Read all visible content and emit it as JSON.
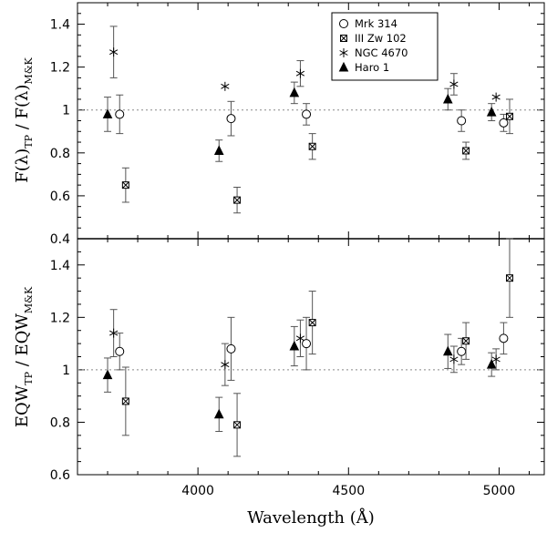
{
  "chart_data": {
    "type": "scatter",
    "x_range": [
      3600,
      5150
    ],
    "x_ticks": [
      4000,
      4500,
      5000
    ],
    "x_tick_labels": [
      "4000",
      "4500",
      "5000"
    ],
    "xlabel": "Wavelength (Å)",
    "legend": {
      "placement": "top-right (upper panel)",
      "entries": [
        {
          "name": "Mrk 314",
          "marker": "open-circle"
        },
        {
          "name": "III Zw 102",
          "marker": "open-square-star"
        },
        {
          "name": "NGC 4670",
          "marker": "asterisk"
        },
        {
          "name": "Haro 1",
          "marker": "filled-triangle"
        }
      ]
    },
    "panels": [
      {
        "id": "flux",
        "ylabel_main": "F(λ)",
        "ylabel_main_sub": "TP",
        "ylabel_sep": " / ",
        "ylabel_denom": "F(λ)",
        "ylabel_denom_sub": "M&K",
        "y_range": [
          0.4,
          1.5
        ],
        "y_ticks": [
          0.4,
          0.6,
          0.8,
          1.0,
          1.2,
          1.4
        ],
        "y_tick_labels": [
          "0.4",
          "0.6",
          "0.8",
          "1",
          "1.2",
          "1.4"
        ],
        "reference_line": 1.0,
        "series": [
          {
            "name": "Haro 1",
            "marker": "filled-triangle",
            "points": [
              {
                "x": 3700,
                "y": 0.98,
                "err": 0.08
              },
              {
                "x": 4070,
                "y": 0.81,
                "err": 0.05
              },
              {
                "x": 4320,
                "y": 1.08,
                "err": 0.05
              },
              {
                "x": 4830,
                "y": 1.05,
                "err": 0.05
              },
              {
                "x": 4975,
                "y": 0.99,
                "err": 0.04
              }
            ]
          },
          {
            "name": "NGC 4670",
            "marker": "asterisk",
            "points": [
              {
                "x": 3720,
                "y": 1.27,
                "err": 0.12
              },
              {
                "x": 4090,
                "y": 1.11,
                "err": 0.0
              },
              {
                "x": 4340,
                "y": 1.17,
                "err": 0.06
              },
              {
                "x": 4850,
                "y": 1.12,
                "err": 0.05
              },
              {
                "x": 4990,
                "y": 1.06,
                "err": 0.0
              }
            ]
          },
          {
            "name": "Mrk 314",
            "marker": "open-circle",
            "points": [
              {
                "x": 3740,
                "y": 0.98,
                "err": 0.09
              },
              {
                "x": 4110,
                "y": 0.96,
                "err": 0.08
              },
              {
                "x": 4360,
                "y": 0.98,
                "err": 0.05
              },
              {
                "x": 4875,
                "y": 0.95,
                "err": 0.05
              },
              {
                "x": 5015,
                "y": 0.94,
                "err": 0.04
              }
            ]
          },
          {
            "name": "III Zw 102",
            "marker": "open-square-star",
            "points": [
              {
                "x": 3760,
                "y": 0.65,
                "err": 0.08
              },
              {
                "x": 4130,
                "y": 0.58,
                "err": 0.06
              },
              {
                "x": 4380,
                "y": 0.83,
                "err": 0.06
              },
              {
                "x": 4890,
                "y": 0.81,
                "err": 0.04
              },
              {
                "x": 5035,
                "y": 0.97,
                "err": 0.08
              }
            ]
          }
        ]
      },
      {
        "id": "eqw",
        "ylabel_main": "EQW",
        "ylabel_main_sub": "TP",
        "ylabel_sep": " / ",
        "ylabel_denom": "EQW",
        "ylabel_denom_sub": "M&K",
        "y_range": [
          0.6,
          1.5
        ],
        "y_ticks": [
          0.6,
          0.8,
          1.0,
          1.2,
          1.4
        ],
        "y_tick_labels": [
          "0.6",
          "0.8",
          "1",
          "1.2",
          "1.4"
        ],
        "reference_line": 1.0,
        "series": [
          {
            "name": "Haro 1",
            "marker": "filled-triangle",
            "points": [
              {
                "x": 3700,
                "y": 0.98,
                "err": 0.065
              },
              {
                "x": 4070,
                "y": 0.83,
                "err": 0.065
              },
              {
                "x": 4320,
                "y": 1.09,
                "err": 0.075
              },
              {
                "x": 4830,
                "y": 1.07,
                "err": 0.065
              },
              {
                "x": 4975,
                "y": 1.02,
                "err": 0.045
              }
            ]
          },
          {
            "name": "NGC 4670",
            "marker": "asterisk",
            "points": [
              {
                "x": 3720,
                "y": 1.14,
                "err": 0.09
              },
              {
                "x": 4090,
                "y": 1.02,
                "err": 0.08
              },
              {
                "x": 4340,
                "y": 1.12,
                "err": 0.07
              },
              {
                "x": 4850,
                "y": 1.04,
                "err": 0.05
              },
              {
                "x": 4990,
                "y": 1.04,
                "err": 0.04
              }
            ]
          },
          {
            "name": "Mrk 314",
            "marker": "open-circle",
            "points": [
              {
                "x": 3740,
                "y": 1.07,
                "err": 0.07
              },
              {
                "x": 4110,
                "y": 1.08,
                "err": 0.12
              },
              {
                "x": 4360,
                "y": 1.1,
                "err": 0.1
              },
              {
                "x": 4875,
                "y": 1.07,
                "err": 0.05
              },
              {
                "x": 5015,
                "y": 1.12,
                "err": 0.06
              }
            ]
          },
          {
            "name": "III Zw 102",
            "marker": "open-square-star",
            "points": [
              {
                "x": 3760,
                "y": 0.88,
                "err": 0.13
              },
              {
                "x": 4130,
                "y": 0.79,
                "err": 0.12
              },
              {
                "x": 4380,
                "y": 1.18,
                "err": 0.12
              },
              {
                "x": 4890,
                "y": 1.11,
                "err": 0.07
              },
              {
                "x": 5035,
                "y": 1.35,
                "err": 0.15
              }
            ]
          }
        ]
      }
    ]
  }
}
